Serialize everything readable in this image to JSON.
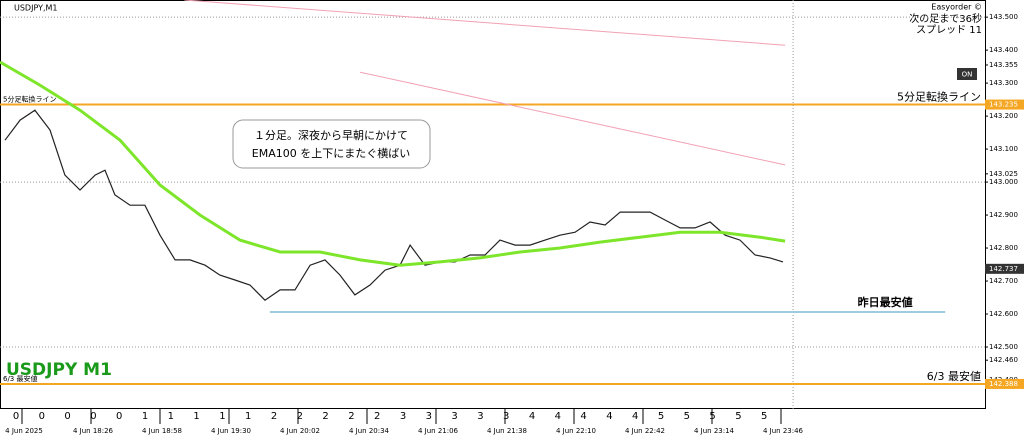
{
  "chart_data": {
    "type": "line",
    "symbol": "USDJPY,M1",
    "watermark": "USDJPY M1",
    "tool": "Easyorder ©",
    "next_bar": "次の足まで36秒",
    "spread": "スプレッド 11",
    "button": "ON",
    "annotation": [
      "１分足。深夜から早朝にかけて",
      "EMA100 を上下にまたぐ横ばい"
    ],
    "xlim": [
      -10.2,
      446.6
    ],
    "ylim": [
      142.309,
      143.552
    ],
    "xticks": [
      {
        "value": 0,
        "label": "4 Jun 2025"
      },
      {
        "value": 32,
        "label": "4 Jun 18:26"
      },
      {
        "value": 64,
        "label": "4 Jun 18:58"
      },
      {
        "value": 96,
        "label": "4 Jun 19:30"
      },
      {
        "value": 128,
        "label": "4 Jun 20:02"
      },
      {
        "value": 160,
        "label": "4 Jun 20:34"
      },
      {
        "value": 192,
        "label": "4 Jun 21:06"
      },
      {
        "value": 224,
        "label": "4 Jun 21:38"
      },
      {
        "value": 256,
        "label": "4 Jun 22:10"
      },
      {
        "value": 288,
        "label": "4 Jun 22:42"
      },
      {
        "value": 320,
        "label": "4 Jun 23:14"
      },
      {
        "value": 352,
        "label": "4 Jun 23:46"
      }
    ],
    "yticks": [
      {
        "value": 143.5,
        "label": "143.500"
      },
      {
        "value": 143.4,
        "label": "143.400"
      },
      143.355,
      {
        "value": 143.3,
        "label": "143.300"
      },
      {
        "value": 143.2,
        "label": "143.200"
      },
      {
        "value": 143.1,
        "label": "143.100"
      },
      143.025,
      {
        "value": 143.0,
        "label": "143.000"
      },
      {
        "value": 142.9,
        "label": "142.900"
      },
      {
        "value": 142.8,
        "label": "142.800"
      },
      {
        "value": 142.7,
        "label": "142.700"
      },
      {
        "value": 142.6,
        "label": "142.600"
      },
      {
        "value": 142.5,
        "label": "142.500"
      },
      {
        "value": 142.46,
        "label": "142.460"
      },
      {
        "value": 142.4,
        "label": "142.400"
      }
    ],
    "grid_levels": [
      143.5,
      143.0,
      142.5
    ],
    "now_marker_x": 357.6,
    "current_price": 142.737,
    "counter_row": [
      0,
      0,
      0,
      0,
      0,
      1,
      1,
      1,
      1,
      1,
      2,
      2,
      2,
      2,
      2,
      3,
      3,
      3,
      3,
      3,
      4,
      4,
      4,
      4,
      4,
      5,
      5,
      5,
      5,
      5
    ],
    "levels": [
      {
        "label": "5分足転換ライン",
        "value": 143.235,
        "color": "#f5a623",
        "price_box": true
      },
      {
        "label": "昨日最安値",
        "value": 142.606,
        "color": "#9fcbe0",
        "x_range": [
          115.0,
          428.1
        ],
        "price_box": false
      },
      {
        "label": "6/3 最安値",
        "value": 142.388,
        "color": "#f5a623",
        "price_box": true
      }
    ],
    "series": [
      {
        "color": "#222222",
        "width": 1.2,
        "x": [
          -7.9,
          -0.9,
          6.0,
          13.0,
          19.9,
          26.9,
          33.9,
          38.5,
          43.1,
          50.1,
          57.0,
          64.0,
          71.0,
          77.9,
          84.9,
          91.8,
          98.8,
          105.7,
          112.7,
          119.7,
          126.6,
          133.6,
          140.5,
          147.5,
          154.4,
          161.4,
          168.4,
          175.3,
          180.0,
          186.9,
          193.9,
          200.8,
          207.8,
          214.7,
          221.7,
          228.7,
          235.6,
          242.6,
          249.5,
          256.5,
          263.4,
          270.4,
          277.4,
          284.3,
          291.3,
          298.2,
          305.2,
          312.1,
          319.1,
          326.1,
          333.0,
          340.0,
          346.9,
          352.9
        ],
        "values": [
          143.127,
          143.188,
          143.218,
          143.158,
          143.021,
          142.976,
          143.021,
          143.036,
          142.961,
          142.93,
          142.93,
          142.839,
          142.764,
          142.764,
          142.748,
          142.718,
          142.703,
          142.688,
          142.642,
          142.673,
          142.673,
          142.748,
          142.764,
          142.718,
          142.658,
          142.688,
          142.733,
          142.748,
          142.809,
          142.748,
          142.758,
          142.758,
          142.779,
          142.779,
          142.824,
          142.809,
          142.809,
          142.824,
          142.839,
          142.848,
          142.879,
          142.87,
          142.909,
          142.909,
          142.909,
          142.885,
          142.861,
          142.861,
          142.879,
          142.839,
          142.824,
          142.779,
          142.77,
          142.758
        ]
      },
      {
        "color": "#7ee62a",
        "width": 3,
        "x": [
          -10.2,
          8.3,
          26.9,
          45.5,
          64.0,
          82.6,
          101.1,
          119.7,
          138.2,
          156.8,
          175.3,
          193.9,
          212.4,
          231.0,
          249.5,
          268.1,
          286.6,
          305.2,
          323.7,
          342.3,
          353.9
        ],
        "values": [
          143.364,
          143.294,
          143.218,
          143.127,
          142.991,
          142.9,
          142.824,
          142.788,
          142.788,
          142.764,
          142.748,
          142.758,
          142.77,
          142.788,
          142.8,
          142.818,
          142.833,
          142.848,
          142.848,
          142.833,
          142.821
        ]
      },
      {
        "color": "#f2a0b4",
        "width": 1,
        "x": [
          75.3,
          353.9
        ],
        "values": [
          143.552,
          143.415
        ]
      },
      {
        "color": "#f2a0b4",
        "width": 1,
        "x": [
          156.8,
          353.9
        ],
        "values": [
          143.333,
          143.052
        ]
      }
    ]
  }
}
